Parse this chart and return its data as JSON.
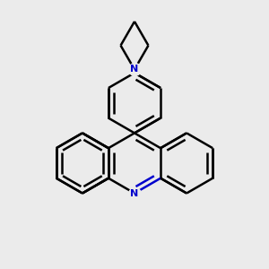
{
  "bg_color": "#ebebeb",
  "bond_color": "#000000",
  "nitrogen_color": "#0000cc",
  "bond_width": 1.8,
  "figsize": [
    3.0,
    3.0
  ],
  "dpi": 100
}
